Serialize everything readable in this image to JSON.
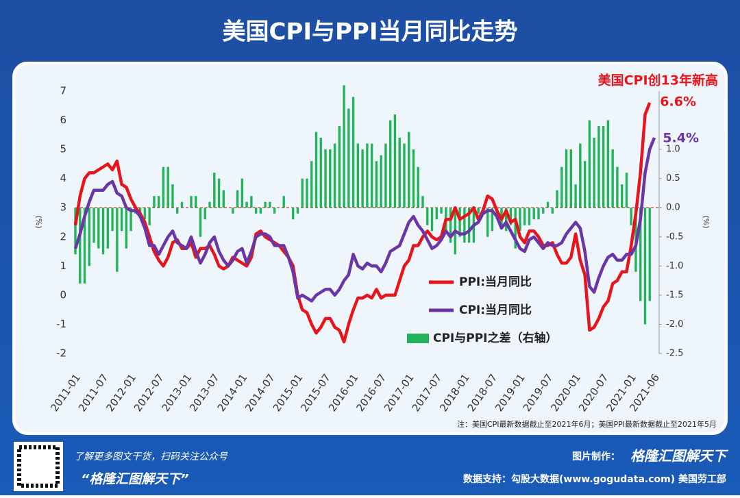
{
  "chart_data": {
    "type": "combo",
    "title": "美国CPI与PPI当月同比走势",
    "annotation": "美国CPI创13年新高",
    "end_labels": [
      "6.6%",
      "5.4%"
    ],
    "note": "注：美国CPI最新数据截止至2021年6月；美国PPI最新数据截止至2021年5月",
    "y_label": "(%)",
    "y2_label": "(%)",
    "categories": [
      "2011-01",
      null,
      null,
      null,
      null,
      null,
      "2011-07",
      null,
      null,
      null,
      null,
      null,
      "2012-01",
      null,
      null,
      null,
      null,
      null,
      "2012-07",
      null,
      null,
      null,
      null,
      null,
      "2013-01",
      null,
      null,
      null,
      null,
      null,
      "2013-07",
      null,
      null,
      null,
      null,
      null,
      "2014-01",
      null,
      null,
      null,
      null,
      null,
      "2014-07",
      null,
      null,
      null,
      null,
      null,
      "2015-01",
      null,
      null,
      null,
      null,
      null,
      "2015-07",
      null,
      null,
      null,
      null,
      null,
      "2016-01",
      null,
      null,
      null,
      null,
      null,
      "2016-07",
      null,
      null,
      null,
      null,
      null,
      "2017-01",
      null,
      null,
      null,
      null,
      null,
      "2017-07",
      null,
      null,
      null,
      null,
      null,
      "2018-01",
      null,
      null,
      null,
      null,
      null,
      "2018-07",
      null,
      null,
      null,
      null,
      null,
      "2019-01",
      null,
      null,
      null,
      null,
      null,
      "2019-07",
      null,
      null,
      null,
      null,
      null,
      "2020-01",
      null,
      null,
      null,
      null,
      null,
      "2020-07",
      null,
      null,
      null,
      null,
      null,
      "2021-01",
      null,
      null,
      null,
      null,
      "2021-06"
    ],
    "series": [
      {
        "name": "PPI:当月同比",
        "type": "line",
        "color": "#e8141c",
        "values": [
          2.4,
          3.4,
          4.0,
          4.2,
          4.2,
          4.3,
          4.4,
          4.5,
          4.3,
          4.6,
          3.8,
          3.7,
          3.3,
          3.0,
          2.8,
          2.5,
          2.0,
          1.5,
          1.2,
          1.0,
          1.3,
          1.8,
          1.9,
          1.6,
          1.6,
          1.8,
          1.3,
          1.6,
          1.6,
          1.7,
          1.4,
          1.0,
          0.9,
          1.0,
          1.3,
          1.2,
          1.1,
          1.0,
          1.3,
          2.1,
          2.2,
          2.0,
          1.9,
          1.8,
          1.7,
          1.5,
          1.3,
          1.0,
          0.0,
          -0.5,
          -0.6,
          -1.0,
          -1.3,
          -1.1,
          -0.8,
          -0.8,
          -1.1,
          -1.2,
          -1.6,
          -1.0,
          -0.5,
          -0.1,
          -0.1,
          0.0,
          -0.1,
          0.2,
          -0.1,
          0.0,
          0.0,
          0.0,
          0.5,
          1.0,
          1.2,
          1.7,
          1.7,
          2.0,
          2.2,
          2.0,
          1.9,
          2.0,
          2.6,
          2.6,
          3.0,
          2.6,
          2.7,
          2.8,
          3.0,
          2.6,
          2.9,
          3.4,
          3.3,
          2.9,
          2.6,
          2.9,
          2.5,
          2.6,
          2.0,
          1.8,
          2.2,
          2.2,
          2.0,
          1.7,
          1.7,
          1.8,
          1.4,
          1.1,
          1.1,
          1.3,
          2.1,
          1.2,
          0.7,
          -1.2,
          -1.1,
          -0.8,
          -0.4,
          -0.2,
          0.4,
          0.5,
          0.8,
          0.8,
          1.7,
          2.8,
          4.2,
          6.2,
          6.6,
          null
        ]
      },
      {
        "name": "CPI:当月同比",
        "type": "line",
        "color": "#6a36a6",
        "values": [
          1.6,
          2.1,
          2.7,
          3.2,
          3.6,
          3.6,
          3.6,
          3.8,
          3.9,
          3.5,
          3.4,
          3.0,
          2.9,
          2.9,
          2.7,
          2.3,
          1.7,
          1.7,
          1.4,
          1.7,
          2.0,
          2.2,
          1.8,
          1.7,
          1.6,
          2.0,
          1.5,
          1.1,
          1.4,
          1.8,
          2.0,
          1.5,
          1.2,
          1.0,
          1.2,
          1.5,
          1.6,
          1.1,
          1.5,
          2.0,
          2.1,
          2.1,
          2.0,
          1.7,
          1.7,
          1.7,
          1.3,
          0.8,
          -0.1,
          0.0,
          -0.1,
          -0.2,
          0.0,
          0.1,
          0.2,
          0.2,
          0.0,
          0.2,
          0.5,
          0.7,
          1.4,
          1.0,
          0.9,
          1.1,
          1.0,
          1.0,
          0.8,
          1.1,
          1.5,
          1.6,
          1.7,
          2.1,
          2.5,
          2.7,
          2.4,
          2.2,
          1.9,
          1.6,
          1.7,
          1.9,
          2.2,
          2.0,
          2.2,
          2.1,
          2.1,
          2.2,
          2.4,
          2.5,
          2.8,
          2.9,
          2.9,
          2.7,
          2.3,
          2.5,
          2.2,
          1.9,
          1.6,
          1.5,
          1.9,
          2.0,
          1.8,
          1.6,
          1.8,
          1.7,
          1.7,
          1.8,
          2.1,
          2.3,
          2.5,
          2.3,
          1.5,
          0.3,
          0.1,
          0.6,
          1.0,
          1.3,
          1.4,
          1.2,
          1.2,
          1.4,
          1.4,
          1.7,
          2.6,
          4.2,
          5.0,
          5.4
        ]
      },
      {
        "name": "CPI与PPI之差（右轴）",
        "type": "bar",
        "axis": "y2",
        "color": "#22b35a",
        "values": [
          -0.8,
          -1.3,
          -1.3,
          -1.0,
          -0.6,
          -0.7,
          -0.8,
          -0.7,
          -0.4,
          -1.1,
          -0.4,
          -0.7,
          -0.4,
          -0.1,
          -0.1,
          -0.2,
          -0.3,
          0.2,
          0.2,
          0.7,
          0.7,
          0.4,
          -0.1,
          0.1,
          0.0,
          0.2,
          0.2,
          -0.5,
          -0.2,
          0.1,
          0.6,
          0.5,
          0.3,
          0.0,
          -0.1,
          0.3,
          0.5,
          0.1,
          0.2,
          -0.1,
          -0.1,
          0.1,
          0.1,
          -0.1,
          0.0,
          0.2,
          0.0,
          -0.2,
          -0.1,
          0.5,
          0.5,
          0.8,
          1.3,
          1.2,
          1.0,
          1.0,
          1.1,
          1.4,
          2.1,
          1.7,
          1.9,
          1.1,
          1.0,
          1.1,
          1.1,
          0.8,
          0.9,
          1.1,
          1.5,
          1.6,
          1.2,
          1.1,
          1.3,
          1.0,
          0.7,
          0.2,
          -0.3,
          -0.4,
          -0.2,
          -0.1,
          -0.4,
          -0.6,
          -0.8,
          -0.5,
          -0.6,
          -0.6,
          -0.6,
          -0.1,
          -0.1,
          -0.5,
          -0.4,
          -0.2,
          -0.3,
          -0.4,
          -0.3,
          -0.7,
          -0.4,
          -0.3,
          -0.3,
          -0.2,
          -0.2,
          -0.1,
          0.1,
          -0.1,
          0.3,
          0.7,
          1.0,
          1.0,
          0.4,
          1.1,
          0.8,
          1.5,
          1.2,
          1.4,
          1.4,
          1.5,
          1.0,
          0.7,
          0.4,
          0.6,
          -0.3,
          -1.1,
          -1.6,
          -2.0,
          -1.6,
          null
        ]
      }
    ],
    "ylim": [
      -2,
      7
    ],
    "yticks": [
      -2,
      -1,
      0,
      1,
      2,
      3,
      4,
      5,
      6,
      7
    ],
    "y2lim": [
      -2.5,
      2
    ],
    "y2ticks": [
      {
        "value": 1,
        "label": "1.0"
      },
      0.5,
      {
        "value": 0,
        "label": "0.0"
      },
      -0.5,
      {
        "value": -1,
        "label": "-1.0"
      },
      -1.5,
      {
        "value": -2,
        "label": "-2.0"
      },
      -2.5
    ]
  },
  "footer": {
    "qr_caption": "了解更多图文干货，扫码关注公众号",
    "account": "“格隆汇图解天下”",
    "made_by_label": "图片制作：",
    "made_by": "格隆汇图解天下",
    "source": "数据支持：勾股大数据(www.gogudata.com)  美国劳工部"
  }
}
